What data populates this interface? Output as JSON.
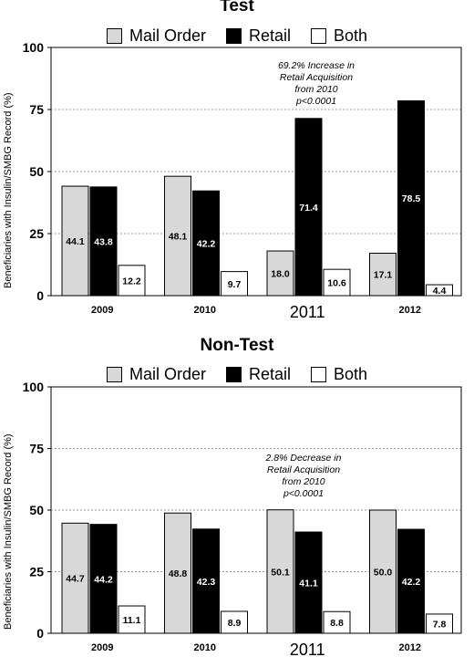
{
  "colors": {
    "mail_order": "#d8d8d8",
    "retail": "#000000",
    "both": "#ffffff"
  },
  "chart_data": [
    {
      "type": "bar",
      "title": "Test",
      "ylabel": "Beneficiaries with Insulin/SMBG Record (%)",
      "xlabel": "",
      "categories": [
        "2009",
        "2010",
        "2011",
        "2012"
      ],
      "ylim": [
        0,
        100
      ],
      "yticks": [
        "0",
        "25",
        "50",
        "75",
        "100"
      ],
      "grid": true,
      "legend": {
        "placement": "top",
        "entries": [
          "Mail Order",
          "Retail",
          "Both"
        ]
      },
      "series": [
        {
          "name": "Mail Order",
          "values": [
            44.1,
            48.1,
            18.0,
            17.1
          ],
          "labels": [
            "44.1",
            "48.1",
            "18.0",
            "17.1"
          ]
        },
        {
          "name": "Retail",
          "values": [
            43.8,
            42.2,
            71.4,
            78.5
          ],
          "labels": [
            "43.8",
            "42.2",
            "71.4",
            "78.5"
          ]
        },
        {
          "name": "Both",
          "values": [
            12.2,
            9.7,
            10.6,
            4.4
          ],
          "labels": [
            "12.2",
            "9.7",
            "10.6",
            "4.4"
          ]
        }
      ],
      "annotation": [
        "69.2% Increase in",
        "Retail Acquisition",
        "from 2010",
        "p<0.0001"
      ]
    },
    {
      "type": "bar",
      "title": "Non-Test",
      "ylabel": "Beneficiaries with Insulin/SMBG Record (%)",
      "xlabel": "",
      "categories": [
        "2009",
        "2010",
        "2011",
        "2012"
      ],
      "ylim": [
        0,
        100
      ],
      "yticks": [
        "0",
        "25",
        "50",
        "75",
        "100"
      ],
      "grid": true,
      "legend": {
        "placement": "top",
        "entries": [
          "Mail Order",
          "Retail",
          "Both"
        ]
      },
      "series": [
        {
          "name": "Mail Order",
          "values": [
            44.7,
            48.8,
            50.1,
            50.0
          ],
          "labels": [
            "44.7",
            "48.8",
            "50.1",
            "50.0"
          ]
        },
        {
          "name": "Retail",
          "values": [
            44.2,
            42.3,
            41.1,
            42.2
          ],
          "labels": [
            "44.2",
            "42.3",
            "41.1",
            "42.2"
          ]
        },
        {
          "name": "Both",
          "values": [
            11.1,
            8.9,
            8.8,
            7.8
          ],
          "labels": [
            "11.1",
            "8.9",
            "8.8",
            "7.8"
          ]
        }
      ],
      "annotation": [
        "2.8% Decrease in",
        "Retail Acquisition",
        "from 2010",
        "p<0.0001"
      ]
    }
  ]
}
